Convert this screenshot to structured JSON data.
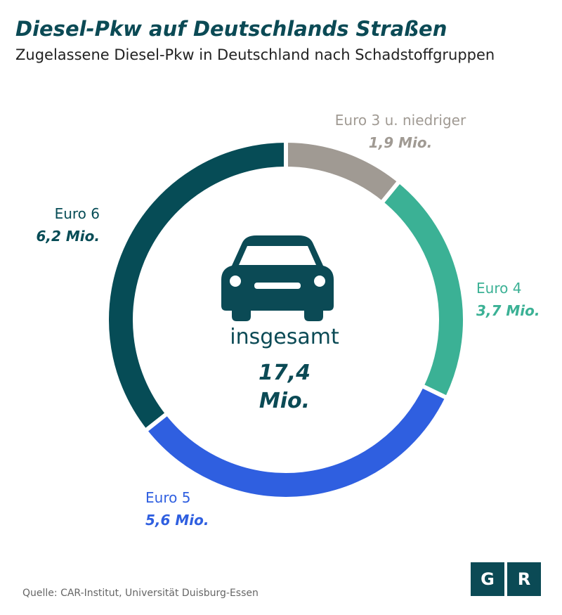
{
  "chart_data": {
    "type": "donut",
    "title": "Diesel-Pkw auf Deutschlands Straßen",
    "subtitle": "Zugelassene Diesel-Pkw in Deutschland nach Schadstoffgruppen",
    "categories": [
      "Euro 3 u. niedriger",
      "Euro 4",
      "Euro 5",
      "Euro 6"
    ],
    "values": [
      1.9,
      3.7,
      5.6,
      6.2
    ],
    "value_labels": [
      "1,9 Mio.",
      "3,7 Mio.",
      "5,6 Mio.",
      "6,2 Mio."
    ],
    "colors": [
      "#a09a93",
      "#3bb195",
      "#2f5fe0",
      "#064c56"
    ],
    "center_label": "insgesamt",
    "total": {
      "value": 17.4,
      "label": "17,4 Mio."
    },
    "source": "Quelle: CAR-Institut, Universität Duisburg-Essen",
    "logo": [
      "G",
      "R"
    ]
  }
}
